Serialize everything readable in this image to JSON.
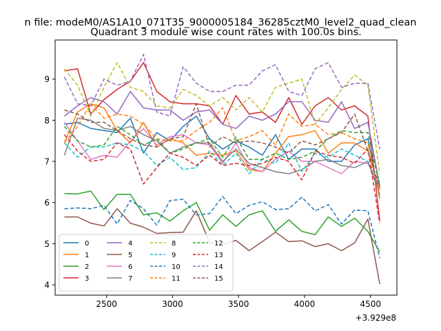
{
  "chart_data": {
    "type": "line",
    "suptitle": "n file: modeM0/AS1A10_071T35_9000005184_36285cztM0_level2_quad_clean",
    "title": "Quadrant 3 module wise count rates with 100.0s bins.",
    "xlabel": "",
    "ylabel": "",
    "x_offset_label": "+3.929e8",
    "xlim": [
      2110,
      4700
    ],
    "ylim": [
      3.75,
      9.95
    ],
    "xticks": [
      2500,
      3000,
      3500,
      4000,
      4500
    ],
    "yticks": [
      4,
      5,
      6,
      7,
      8,
      9
    ],
    "grid": false,
    "legend_position": "lower-left",
    "x": [
      2180,
      2280,
      2380,
      2480,
      2580,
      2680,
      2780,
      2880,
      2980,
      3080,
      3180,
      3280,
      3380,
      3480,
      3580,
      3680,
      3780,
      3880,
      3980,
      4080,
      4180,
      4280,
      4380,
      4480,
      4570
    ],
    "series": [
      {
        "name": "0",
        "color": "#1f77b4",
        "dash": "solid",
        "values": [
          7.9,
          7.95,
          7.8,
          7.75,
          7.7,
          8.05,
          7.2,
          7.7,
          7.5,
          7.85,
          8.1,
          7.55,
          7.3,
          7.5,
          7.35,
          7.15,
          7.65,
          7.05,
          7.3,
          7.3,
          7.0,
          7.0,
          7.4,
          7.55,
          6.1
        ]
      },
      {
        "name": "1",
        "color": "#ff7f0e",
        "dash": "solid",
        "values": [
          7.45,
          8.2,
          8.4,
          8.3,
          7.75,
          7.45,
          7.95,
          7.35,
          7.55,
          7.45,
          7.15,
          7.2,
          7.15,
          7.25,
          6.8,
          6.75,
          7.2,
          7.6,
          7.65,
          7.75,
          7.2,
          7.45,
          7.45,
          7.25,
          6.3
        ]
      },
      {
        "name": "2",
        "color": "#2ca02c",
        "dash": "solid",
        "values": [
          6.22,
          6.21,
          6.28,
          5.83,
          6.2,
          6.2,
          5.7,
          5.75,
          5.55,
          5.8,
          6.0,
          5.33,
          5.7,
          5.42,
          5.7,
          5.8,
          5.3,
          5.58,
          5.3,
          5.22,
          5.65,
          5.42,
          5.62,
          5.3,
          4.8
        ]
      },
      {
        "name": "3",
        "color": "#d62728",
        "dash": "solid",
        "values": [
          9.2,
          9.25,
          8.15,
          8.5,
          8.75,
          8.95,
          9.4,
          8.7,
          8.45,
          8.4,
          8.4,
          8.35,
          7.9,
          8.6,
          8.15,
          8.2,
          7.95,
          8.55,
          7.9,
          8.35,
          8.55,
          8.25,
          8.35,
          8.1,
          5.55
        ]
      },
      {
        "name": "4",
        "color": "#9467bd",
        "dash": "solid",
        "values": [
          8.1,
          8.35,
          8.55,
          8.45,
          8.15,
          8.7,
          8.3,
          8.25,
          8.25,
          8.0,
          8.2,
          8.25,
          7.9,
          7.8,
          8.1,
          8.0,
          8.15,
          8.45,
          8.45,
          8.0,
          7.95,
          8.45,
          7.8,
          7.95,
          6.4
        ]
      },
      {
        "name": "5",
        "color": "#8c564b",
        "dash": "solid",
        "values": [
          5.65,
          5.65,
          5.5,
          5.43,
          5.85,
          5.5,
          5.4,
          5.25,
          5.27,
          5.28,
          5.8,
          5.03,
          4.98,
          5.08,
          4.83,
          5.05,
          5.28,
          5.05,
          5.07,
          4.93,
          5.0,
          4.83,
          5.02,
          5.6,
          4.02
        ]
      },
      {
        "name": "6",
        "color": "#e377c2",
        "dash": "solid",
        "values": [
          7.95,
          7.5,
          7.05,
          7.15,
          7.1,
          7.5,
          7.8,
          7.4,
          7.6,
          7.65,
          7.45,
          7.4,
          6.95,
          7.45,
          6.85,
          6.75,
          7.05,
          7.25,
          7.0,
          7.0,
          6.85,
          6.7,
          7.0,
          6.95,
          6.4
        ]
      },
      {
        "name": "7",
        "color": "#7f7f7f",
        "dash": "solid",
        "values": [
          7.15,
          8.05,
          8.0,
          7.8,
          7.75,
          7.85,
          7.65,
          7.5,
          7.2,
          7.35,
          7.45,
          7.45,
          7.0,
          7.3,
          6.95,
          6.85,
          6.75,
          6.7,
          6.8,
          7.0,
          7.05,
          6.9,
          6.85,
          7.0,
          6.2
        ]
      },
      {
        "name": "8",
        "color": "#bcbd22",
        "dash": "dashed",
        "values": [
          9.25,
          8.85,
          8.1,
          8.8,
          9.4,
          8.8,
          8.7,
          8.35,
          8.3,
          8.75,
          8.6,
          8.35,
          8.55,
          8.25,
          8.55,
          8.2,
          8.8,
          8.9,
          9.0,
          7.9,
          8.3,
          8.75,
          9.1,
          8.85,
          6.7
        ]
      },
      {
        "name": "9",
        "color": "#17becf",
        "dash": "dashed",
        "values": [
          7.45,
          7.1,
          7.35,
          7.35,
          7.45,
          7.4,
          7.25,
          6.9,
          7.1,
          6.8,
          6.85,
          7.25,
          6.9,
          7.2,
          6.7,
          7.05,
          6.95,
          7.45,
          6.75,
          7.2,
          7.1,
          7.3,
          7.15,
          7.0,
          6.5
        ]
      },
      {
        "name": "10",
        "color": "#1f77b4",
        "dash": "dashed",
        "values": [
          5.85,
          5.87,
          5.85,
          5.93,
          5.48,
          6.05,
          5.85,
          5.45,
          6.05,
          6.08,
          5.7,
          5.73,
          6.15,
          5.73,
          5.93,
          6.02,
          5.83,
          5.85,
          6.13,
          5.8,
          5.95,
          5.48,
          5.82,
          5.8,
          4.65
        ]
      },
      {
        "name": "11",
        "color": "#ff7f0e",
        "dash": "dashed",
        "values": [
          7.45,
          7.85,
          8.4,
          8.05,
          8.15,
          8.1,
          7.9,
          7.55,
          7.5,
          7.5,
          7.75,
          7.95,
          8.3,
          7.5,
          7.6,
          7.75,
          7.4,
          8.15,
          7.85,
          7.9,
          7.65,
          7.7,
          7.55,
          7.45,
          6.1
        ]
      },
      {
        "name": "12",
        "color": "#2ca02c",
        "dash": "dashed",
        "values": [
          7.85,
          7.5,
          7.35,
          7.4,
          7.85,
          7.65,
          7.4,
          7.55,
          7.2,
          7.3,
          7.45,
          7.55,
          7.1,
          7.6,
          7.05,
          7.05,
          7.2,
          7.05,
          7.1,
          7.25,
          7.55,
          7.75,
          7.7,
          7.7,
          6.4
        ]
      },
      {
        "name": "13",
        "color": "#d62728",
        "dash": "dashed",
        "values": [
          7.65,
          7.25,
          7.0,
          7.05,
          7.45,
          7.3,
          6.45,
          6.85,
          7.2,
          7.1,
          6.9,
          7.15,
          6.9,
          6.95,
          6.9,
          6.95,
          7.1,
          7.0,
          6.55,
          7.25,
          7.15,
          7.1,
          6.95,
          7.3,
          5.5
        ]
      },
      {
        "name": "14",
        "color": "#9467bd",
        "dash": "dashed",
        "values": [
          9.05,
          8.4,
          8.35,
          9.0,
          8.85,
          8.95,
          9.6,
          8.2,
          8.1,
          9.3,
          8.9,
          8.7,
          8.7,
          8.85,
          8.85,
          9.2,
          9.35,
          8.7,
          8.6,
          9.25,
          9.4,
          8.8,
          8.9,
          8.9,
          7.3
        ]
      },
      {
        "name": "15",
        "color": "#8c564b",
        "dash": "dashed",
        "values": [
          8.25,
          8.15,
          7.95,
          7.95,
          7.75,
          7.55,
          7.4,
          7.35,
          7.55,
          7.6,
          8.4,
          7.35,
          7.6,
          7.45,
          7.5,
          7.45,
          7.35,
          7.2,
          7.5,
          7.4,
          7.55,
          7.7,
          8.15,
          7.25,
          6.35
        ]
      }
    ]
  }
}
